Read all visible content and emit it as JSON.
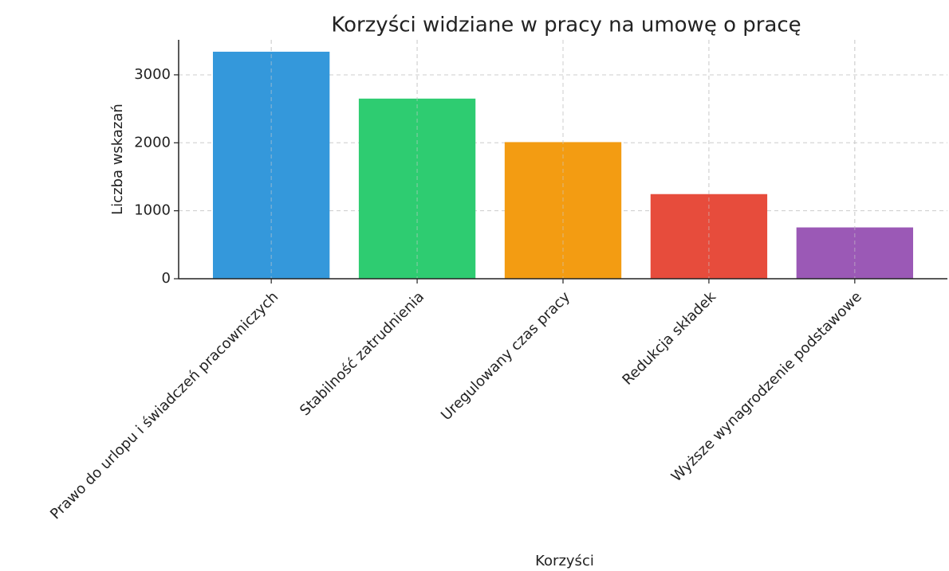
{
  "chart_data": {
    "type": "bar",
    "title": "Korzyści widziane w pracy na umowę o pracę",
    "xlabel": "Korzyści",
    "ylabel": "Liczba wskazań",
    "categories": [
      "Prawo do urlopu i świadczeń pracowniczych",
      "Stabilność zatrudnienia",
      "Uregulowany czas pracy",
      "Redukcja składek",
      "Wyższe wynagrodzenie podstawowe"
    ],
    "values": [
      3340,
      2650,
      2010,
      1245,
      755
    ],
    "colors": [
      "#3498db",
      "#2ecc71",
      "#f39c12",
      "#e74c3c",
      "#9b59b6"
    ],
    "ylim": [
      0,
      3515
    ],
    "yticks": [
      0,
      1000,
      2000,
      3000
    ],
    "grid": true
  }
}
